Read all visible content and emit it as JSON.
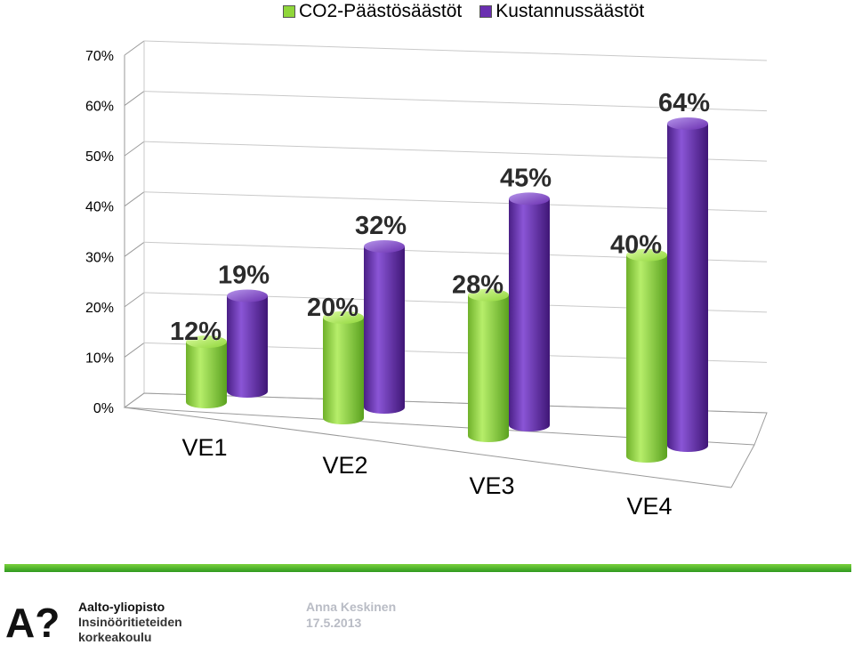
{
  "chart_data": {
    "type": "bar",
    "categories": [
      "VE1",
      "VE2",
      "VE3",
      "VE4"
    ],
    "series": [
      {
        "name": "CO2-Päästösäästöt",
        "values": [
          12,
          20,
          28,
          40
        ],
        "labels": [
          "12%",
          "20%",
          "28%",
          "40%"
        ],
        "color": "#8fd63a"
      },
      {
        "name": "Kustannussäästöt",
        "values": [
          19,
          32,
          45,
          64
        ],
        "labels": [
          "19%",
          "32%",
          "45%",
          "64%"
        ],
        "color": "#6a2fb0"
      }
    ],
    "y_ticks": [
      "0%",
      "10%",
      "20%",
      "30%",
      "40%",
      "50%",
      "60%",
      "70%"
    ],
    "ylim": [
      0,
      70
    ],
    "grid": true,
    "legend_position": "top",
    "style": "3d-cylinder"
  },
  "footer": {
    "author": "Anna Keskinen",
    "date": "17.5.2013",
    "org_line1": "Aalto-yliopisto",
    "org_line2": "Insinööritieteiden",
    "org_line3": "korkeakoulu",
    "logo_mark": "A?"
  },
  "colors": {
    "accent_green": "#3fa82a",
    "logo_red": "#e30613"
  }
}
